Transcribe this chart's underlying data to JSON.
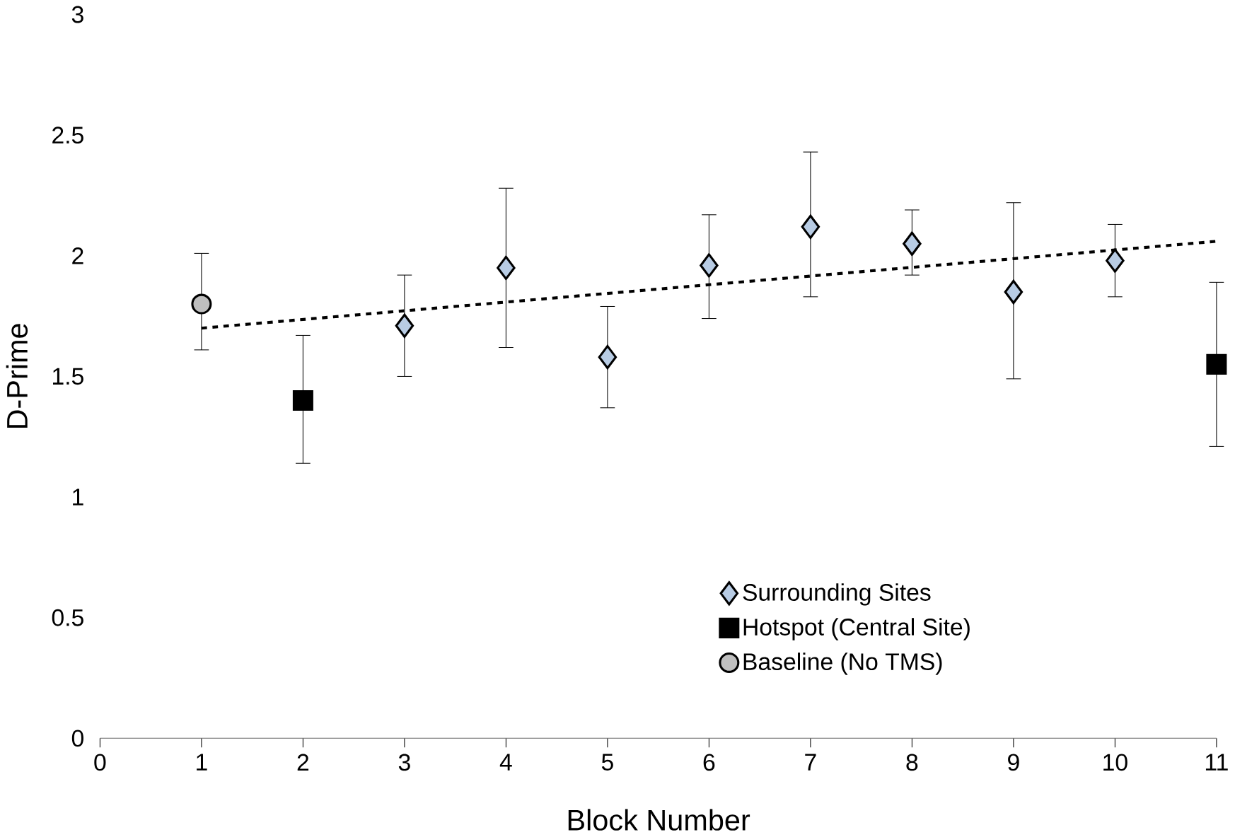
{
  "chart_data": {
    "type": "scatter",
    "xlabel": "Block Number",
    "ylabel": "D-Prime",
    "xlim": [
      0,
      11
    ],
    "xticks": [
      0,
      1,
      2,
      3,
      4,
      5,
      6,
      7,
      8,
      9,
      10,
      11
    ],
    "ylim": [
      0,
      3
    ],
    "yticks": [
      0,
      0.5,
      1,
      1.5,
      2,
      2.5,
      3
    ],
    "grid": false,
    "legend": "bottom",
    "series": [
      {
        "name": "Surrounding Sites",
        "color": "#b8cce4",
        "marker": "diamond",
        "x": [
          3,
          4,
          5,
          6,
          7,
          8,
          9,
          10
        ],
        "values": [
          1.71,
          1.95,
          1.58,
          1.96,
          2.12,
          2.05,
          1.85,
          1.98
        ],
        "errors": [
          [
            1.5,
            1.92
          ],
          [
            1.62,
            2.28
          ],
          [
            1.37,
            1.79
          ],
          [
            1.74,
            2.17
          ],
          [
            1.83,
            2.43
          ],
          [
            1.92,
            2.19
          ],
          [
            1.49,
            2.22
          ],
          [
            1.83,
            2.13
          ]
        ]
      },
      {
        "name": "Hotspot (Central Site)",
        "color": "#000000",
        "marker": "square",
        "x": [
          2,
          11
        ],
        "values": [
          1.4,
          1.55
        ],
        "errors": [
          [
            1.14,
            1.67
          ],
          [
            1.21,
            1.89
          ]
        ]
      },
      {
        "name": "Baseline (No TMS)",
        "color": "#bfbfbf",
        "marker": "circle",
        "x": [
          1
        ],
        "values": [
          1.8
        ],
        "errors": [
          [
            1.61,
            2.01
          ]
        ]
      },
      {
        "type": "line",
        "color": "#000000",
        "line_style": "dashed",
        "marker": "none",
        "x": [
          1,
          11
        ],
        "values": [
          1.7,
          2.06
        ]
      }
    ]
  }
}
